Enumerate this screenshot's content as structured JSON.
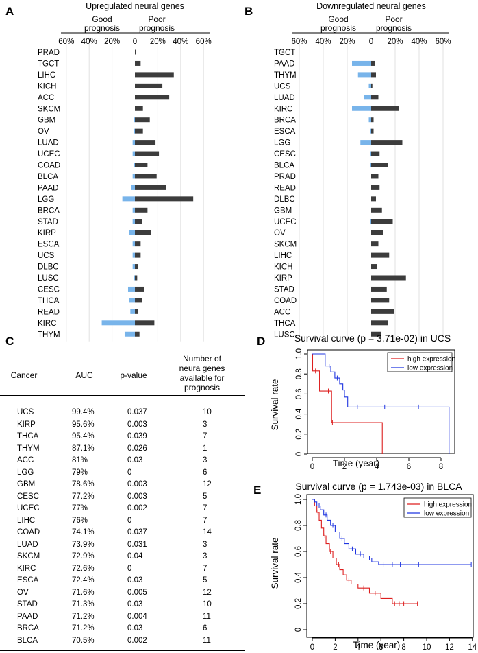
{
  "panel_labels": {
    "a": "A",
    "b": "B",
    "c": "C",
    "d": "D",
    "e": "E"
  },
  "bar_panels": {
    "colors": {
      "good": "#78b4ea",
      "poor": "#3c3c3c",
      "grid": "#e2e2e2"
    },
    "good_label_line1": "Good",
    "good_label_line2": "prognosis",
    "poor_label_line1": "Poor",
    "poor_label_line2": "prognosis",
    "tick_labels": [
      "60%",
      "40%",
      "20%",
      "0",
      "20%",
      "40%",
      "60%"
    ]
  },
  "table": {
    "headers": {
      "cancer": "Cancer",
      "auc": "AUC",
      "pvalue": "p-value",
      "number": [
        "Number of",
        "neura genes",
        "available for",
        "prognosis"
      ]
    },
    "rows": [
      [
        "UCS",
        "99.4%",
        "0.037",
        "10"
      ],
      [
        "KIRP",
        "95.6%",
        "0.003",
        "3"
      ],
      [
        "THCA",
        "95.4%",
        "0.039",
        "7"
      ],
      [
        "THYM",
        "87.1%",
        "0.026",
        "1"
      ],
      [
        "ACC",
        "81%",
        "0.03",
        "3"
      ],
      [
        "LGG",
        "79%",
        "0",
        "6"
      ],
      [
        "GBM",
        "78.6%",
        "0.003",
        "12"
      ],
      [
        "CESC",
        "77.2%",
        "0.003",
        "5"
      ],
      [
        "UCEC",
        "77%",
        "0.002",
        "7"
      ],
      [
        "LIHC",
        "76%",
        "0",
        "7"
      ],
      [
        "COAD",
        "74.1%",
        "0.037",
        "14"
      ],
      [
        "LUAD",
        "73.9%",
        "0.031",
        "3"
      ],
      [
        "SKCM",
        "72.9%",
        "0.04",
        "3"
      ],
      [
        "KIRC",
        "72.6%",
        "0",
        "7"
      ],
      [
        "ESCA",
        "72.4%",
        "0.03",
        "5"
      ],
      [
        "OV",
        "71.6%",
        "0.005",
        "12"
      ],
      [
        "STAD",
        "71.3%",
        "0.03",
        "10"
      ],
      [
        "PAAD",
        "71.2%",
        "0.004",
        "11"
      ],
      [
        "BRCA",
        "71.2%",
        "0.03",
        "6"
      ],
      [
        "BLCA",
        "70.5%",
        "0.002",
        "11"
      ]
    ]
  },
  "chart_data": [
    {
      "type": "bar",
      "orientation": "horizontal-diverging",
      "title": "Upregulated neural genes",
      "categories": [
        "PRAD",
        "TGCT",
        "LIHC",
        "KICH",
        "ACC",
        "SKCM",
        "GBM",
        "OV",
        "LUAD",
        "UCEC",
        "COAD",
        "BLCA",
        "PAAD",
        "LGG",
        "BRCA",
        "STAD",
        "KIRP",
        "ESCA",
        "UCS",
        "DLBC",
        "LUSC",
        "CESC",
        "THCA",
        "READ",
        "KIRC",
        "THYM"
      ],
      "series": [
        {
          "name": "Good prognosis",
          "values": [
            0,
            0,
            0,
            0,
            0,
            0,
            1,
            1,
            2,
            2,
            1,
            2,
            3,
            11,
            2,
            2,
            5,
            2,
            2,
            2,
            1,
            6,
            5,
            4,
            29,
            9
          ]
        },
        {
          "name": "Poor prognosis",
          "values": [
            1,
            5,
            34,
            24,
            30,
            7,
            13,
            7,
            18,
            21,
            11,
            19,
            27,
            51,
            11,
            6,
            14,
            5,
            5,
            3,
            2,
            8,
            6,
            3,
            17,
            4
          ]
        }
      ],
      "xlim": [
        -60,
        60
      ]
    },
    {
      "type": "bar",
      "orientation": "horizontal-diverging",
      "title": "Downregulated neural genes",
      "categories": [
        "TGCT",
        "PAAD",
        "THYM",
        "UCS",
        "LUAD",
        "KIRC",
        "BRCA",
        "ESCA",
        "LGG",
        "CESC",
        "BLCA",
        "PRAD",
        "READ",
        "DLBC",
        "GBM",
        "UCEC",
        "OV",
        "SKCM",
        "LIHC",
        "KICH",
        "KIRP",
        "STAD",
        "COAD",
        "ACC",
        "THCA",
        "LUSC"
      ],
      "series": [
        {
          "name": "Good prognosis",
          "values": [
            0,
            16,
            11,
            2,
            6,
            16,
            2,
            1,
            9,
            1,
            1,
            0,
            0,
            0,
            0,
            1,
            0,
            0,
            0,
            0,
            0,
            0,
            0,
            0,
            0,
            0
          ]
        },
        {
          "name": "Poor prognosis",
          "values": [
            0,
            3,
            4,
            1,
            6,
            23,
            2,
            2,
            26,
            7,
            14,
            6,
            7,
            4,
            9,
            18,
            10,
            6,
            15,
            5,
            29,
            13,
            15,
            19,
            14,
            8
          ]
        }
      ],
      "xlim": [
        -60,
        60
      ]
    },
    {
      "type": "line",
      "subtype": "kaplan-meier",
      "title": "Survival curve (p = 3.71e-02) in UCS",
      "xlabel": "Time (year)",
      "ylabel": "Survival rate",
      "xlim": [
        0,
        9
      ],
      "ylim": [
        0,
        1.05
      ],
      "xticks": [
        0,
        2,
        4,
        6,
        8
      ],
      "yticks": [
        0,
        0.2,
        0.4,
        0.6,
        0.8,
        1.0
      ],
      "ytick_labels": [
        "0",
        "0.2",
        "0.4",
        "0.6",
        "0.8",
        "1.0"
      ],
      "legend": "top-right",
      "series": [
        {
          "name": "high expression",
          "color": "#dd1f1f",
          "steps": [
            [
              0,
              1
            ],
            [
              0.02,
              0.83
            ],
            [
              0.45,
              0.63
            ],
            [
              1.2,
              0.315
            ],
            [
              4.35,
              0
            ]
          ],
          "end": 4.35,
          "censors": [
            [
              0.2,
              0.83
            ],
            [
              1.0,
              0.63
            ],
            [
              1.25,
              0.315
            ]
          ]
        },
        {
          "name": "low expression",
          "color": "#1f35e0",
          "steps": [
            [
              0,
              1
            ],
            [
              0.8,
              0.88
            ],
            [
              1.15,
              0.82
            ],
            [
              1.4,
              0.76
            ],
            [
              1.7,
              0.7
            ],
            [
              1.9,
              0.64
            ],
            [
              2.0,
              0.57
            ],
            [
              2.2,
              0.47
            ],
            [
              8.5,
              0
            ]
          ],
          "end": 8.5,
          "censors": [
            [
              1.05,
              0.88
            ],
            [
              1.55,
              0.76
            ],
            [
              2.8,
              0.47
            ],
            [
              4.5,
              0.47
            ],
            [
              6.6,
              0.47
            ]
          ]
        }
      ]
    },
    {
      "type": "line",
      "subtype": "kaplan-meier",
      "title": "Survival curve (p = 1.743e-03) in BLCA",
      "xlabel": "Time (year)",
      "ylabel": "Survival rate",
      "xlim": [
        0,
        14
      ],
      "ylim": [
        0,
        1.02
      ],
      "xticks": [
        0,
        2,
        4,
        6,
        8,
        10,
        12,
        14
      ],
      "yticks": [
        0,
        0.2,
        0.4,
        0.6,
        0.8,
        1.0
      ],
      "ytick_labels": [
        "0",
        "0.2",
        "0.4",
        "0.6",
        "0.8",
        "1.0"
      ],
      "legend": "top-right",
      "series": [
        {
          "name": "high expression",
          "color": "#dd1f1f",
          "steps": [
            [
              0,
              1
            ],
            [
              0.2,
              0.95
            ],
            [
              0.4,
              0.9
            ],
            [
              0.6,
              0.84
            ],
            [
              0.8,
              0.78
            ],
            [
              1.0,
              0.72
            ],
            [
              1.2,
              0.66
            ],
            [
              1.5,
              0.6
            ],
            [
              1.8,
              0.55
            ],
            [
              2.1,
              0.5
            ],
            [
              2.4,
              0.46
            ],
            [
              2.7,
              0.42
            ],
            [
              3.0,
              0.38
            ],
            [
              3.4,
              0.35
            ],
            [
              4.0,
              0.32
            ],
            [
              5.0,
              0.28
            ],
            [
              6.0,
              0.24
            ],
            [
              7.0,
              0.2
            ]
          ],
          "end": 9.2,
          "censors": [
            [
              0.5,
              0.9
            ],
            [
              1.1,
              0.72
            ],
            [
              1.6,
              0.6
            ],
            [
              2.3,
              0.5
            ],
            [
              3.2,
              0.38
            ],
            [
              4.5,
              0.32
            ],
            [
              5.5,
              0.28
            ],
            [
              7.2,
              0.2
            ],
            [
              7.6,
              0.2
            ],
            [
              8.0,
              0.2
            ],
            [
              9.2,
              0.2
            ]
          ]
        },
        {
          "name": "low expression",
          "color": "#1f35e0",
          "steps": [
            [
              0,
              1
            ],
            [
              0.2,
              0.98
            ],
            [
              0.4,
              0.95
            ],
            [
              0.7,
              0.92
            ],
            [
              1.0,
              0.88
            ],
            [
              1.3,
              0.84
            ],
            [
              1.6,
              0.8
            ],
            [
              2.0,
              0.75
            ],
            [
              2.4,
              0.7
            ],
            [
              2.8,
              0.66
            ],
            [
              3.2,
              0.62
            ],
            [
              3.8,
              0.58
            ],
            [
              4.5,
              0.55
            ],
            [
              5.2,
              0.52
            ],
            [
              5.8,
              0.5
            ]
          ],
          "end": 13.9,
          "censors": [
            [
              0.6,
              0.95
            ],
            [
              1.2,
              0.88
            ],
            [
              1.8,
              0.8
            ],
            [
              2.6,
              0.7
            ],
            [
              3.5,
              0.62
            ],
            [
              4.2,
              0.58
            ],
            [
              5.0,
              0.55
            ],
            [
              6.2,
              0.5
            ],
            [
              7.0,
              0.5
            ],
            [
              7.7,
              0.5
            ],
            [
              9.3,
              0.5
            ],
            [
              13.9,
              0.5
            ]
          ]
        }
      ]
    }
  ]
}
